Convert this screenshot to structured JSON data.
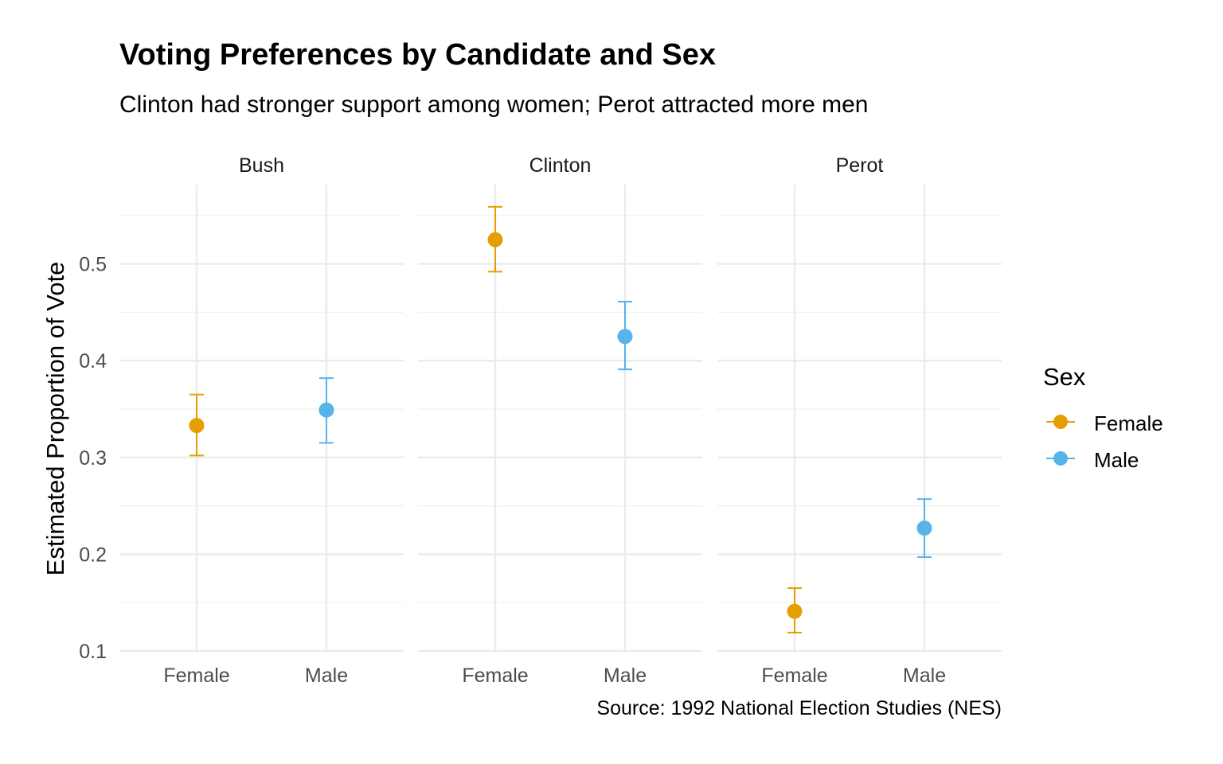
{
  "title": "Voting Preferences by Candidate and Sex",
  "subtitle": "Clinton had stronger support among women; Perot attracted more men",
  "caption": "Source: 1992 National Election Studies (NES)",
  "legend": {
    "title": "Sex",
    "items": [
      {
        "label": "Female",
        "color": "#E69F00"
      },
      {
        "label": "Male",
        "color": "#56B4E9"
      }
    ]
  },
  "chart_data": {
    "type": "scatter",
    "title": "Voting Preferences by Candidate and Sex",
    "subtitle": "Clinton had stronger support among women; Perot attracted more men",
    "ylabel": "Estimated Proportion of Vote",
    "xlabel": "",
    "ylim": [
      0.1,
      0.55
    ],
    "yticks": [
      0.1,
      0.2,
      0.3,
      0.4,
      0.5
    ],
    "ytick_labels": [
      "0.1",
      "0.2",
      "0.3",
      "0.4",
      "0.5"
    ],
    "categories": [
      "Female",
      "Male"
    ],
    "grid": true,
    "legend_position": "right",
    "facets": [
      {
        "name": "Bush",
        "points": [
          {
            "category": "Female",
            "estimate": 0.333,
            "lower": 0.302,
            "upper": 0.365
          },
          {
            "category": "Male",
            "estimate": 0.349,
            "lower": 0.315,
            "upper": 0.382
          }
        ]
      },
      {
        "name": "Clinton",
        "points": [
          {
            "category": "Female",
            "estimate": 0.525,
            "lower": 0.492,
            "upper": 0.559
          },
          {
            "category": "Male",
            "estimate": 0.425,
            "lower": 0.391,
            "upper": 0.461
          }
        ]
      },
      {
        "name": "Perot",
        "points": [
          {
            "category": "Female",
            "estimate": 0.141,
            "lower": 0.119,
            "upper": 0.165
          },
          {
            "category": "Male",
            "estimate": 0.227,
            "lower": 0.197,
            "upper": 0.257
          }
        ]
      }
    ]
  }
}
